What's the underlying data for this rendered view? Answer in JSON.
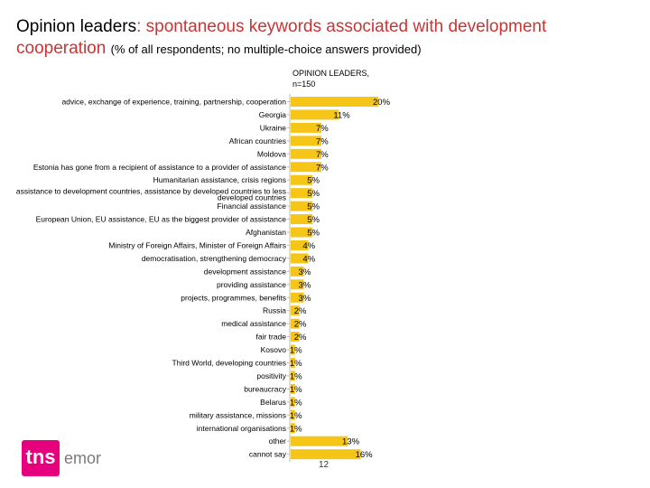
{
  "title": {
    "lead": "Opinion leaders",
    "accent": ": spontaneous keywords associated with development cooperation",
    "note": "(% of all respondents; no multiple-choice answers provided)"
  },
  "logo": {
    "brand": "tns",
    "brand2": "emor"
  },
  "page_number": "12",
  "colors": {
    "bar": "#f5c518",
    "accent": "#cc3333",
    "logo": "#e6007e"
  },
  "chart_data": {
    "type": "bar",
    "orientation": "horizontal",
    "series": [
      {
        "name": "OPINION LEADERS, n=150",
        "values": [
          20,
          11,
          7,
          7,
          7,
          7,
          5,
          5,
          5,
          5,
          5,
          4,
          4,
          3,
          3,
          3,
          2,
          2,
          2,
          1,
          1,
          1,
          1,
          1,
          1,
          1,
          13,
          16
        ]
      }
    ],
    "categories": [
      "advice, exchange of experience, training, partnership, cooperation",
      "Georgia",
      "Ukraine",
      "African countries",
      "Moldova",
      "Estonia has gone from a recipient of assistance to a provider of assistance",
      "Humanitarian assistance, crisis regions",
      "assistance to development countries, assistance by developed countries to less developed countries",
      "Financial assistance",
      "European Union, EU assistance, EU as the biggest provider of assistance",
      "Afghanistan",
      "Ministry of Foreign Affairs, Minister of Foreign Affairs",
      "democratisation, strengthening democracy",
      "development assistance",
      "providing assistance",
      "projects, programmes, benefits",
      "Russia",
      "medical assistance",
      "fair trade",
      "Kosovo",
      "Third World, developing countries",
      "positivity",
      "bureaucracy",
      "Belarus",
      "military assistance, missions",
      "international organisations",
      "other",
      "cannot say"
    ],
    "value_labels": [
      "20%",
      "11%",
      "7%",
      "7%",
      "7%",
      "7%",
      "5%",
      "5%",
      "5%",
      "5%",
      "5%",
      "4%",
      "4%",
      "3%",
      "3%",
      "3%",
      "2%",
      "2%",
      "2%",
      "1%",
      "1%",
      "1%",
      "1%",
      "1%",
      "1%",
      "1%",
      "13%",
      "16%"
    ],
    "xlim": [
      0,
      20
    ],
    "legend": "top"
  }
}
